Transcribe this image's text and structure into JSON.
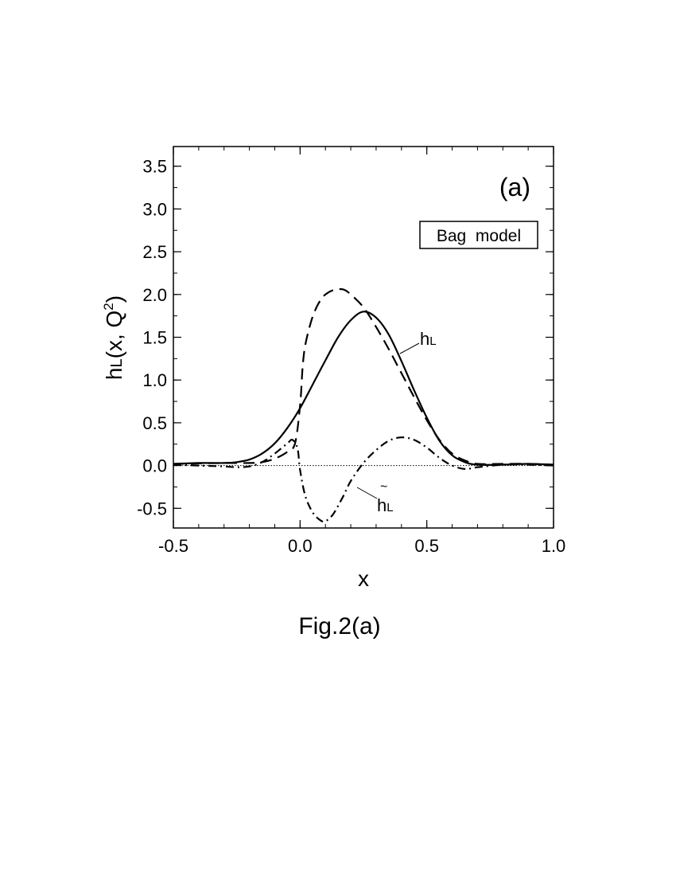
{
  "chart_data": {
    "type": "line",
    "panel_label": "(a)",
    "legend_box": "Bag  model",
    "caption": "Fig.2(a)",
    "xlabel": "x",
    "ylabel": {
      "base": "h",
      "sub": "L",
      "args": "(x, Q",
      "sup": "2",
      "close": ")"
    },
    "xlim": [
      -0.5,
      1.0
    ],
    "ylim": [
      -0.73,
      3.73
    ],
    "x_ticks": [
      "-0.5",
      "0.0",
      "0.5",
      "1.0"
    ],
    "y_ticks": [
      "-0.5",
      "0.0",
      "0.5",
      "1.0",
      "1.5",
      "2.0",
      "2.5",
      "3.0",
      "3.5"
    ],
    "annotations": [
      {
        "text": "h",
        "sub": "L",
        "tilde": false,
        "series": "solid"
      },
      {
        "text": "h",
        "sub": "L",
        "tilde": true,
        "series": "dash-dot"
      }
    ],
    "series": [
      {
        "style": "solid",
        "x": [
          -0.5,
          -0.4,
          -0.3,
          -0.25,
          -0.2,
          -0.15,
          -0.1,
          -0.05,
          0.0,
          0.05,
          0.1,
          0.15,
          0.2,
          0.25,
          0.3,
          0.35,
          0.4,
          0.45,
          0.5,
          0.55,
          0.6,
          0.65,
          0.7,
          0.8,
          0.9,
          1.0
        ],
        "y": [
          0.02,
          0.03,
          0.03,
          0.04,
          0.07,
          0.14,
          0.26,
          0.44,
          0.67,
          0.95,
          1.23,
          1.5,
          1.7,
          1.8,
          1.73,
          1.53,
          1.22,
          0.88,
          0.56,
          0.29,
          0.12,
          0.04,
          0.01,
          0.01,
          0.02,
          0.01
        ]
      },
      {
        "style": "dashed",
        "x": [
          -0.5,
          -0.3,
          -0.2,
          -0.15,
          -0.1,
          -0.05,
          -0.02,
          0.0,
          0.01,
          0.02,
          0.04,
          0.06,
          0.08,
          0.1,
          0.13,
          0.17,
          0.2,
          0.25,
          0.3,
          0.35,
          0.4,
          0.45,
          0.5,
          0.55,
          0.6,
          0.65,
          0.7,
          0.8,
          0.9,
          1.0
        ],
        "y": [
          0.02,
          0.03,
          0.03,
          0.04,
          0.08,
          0.16,
          0.26,
          0.7,
          1.15,
          1.4,
          1.65,
          1.82,
          1.93,
          2.0,
          2.05,
          2.06,
          2.0,
          1.85,
          1.62,
          1.36,
          1.08,
          0.8,
          0.53,
          0.3,
          0.14,
          0.06,
          0.02,
          0.02,
          0.02,
          0.01
        ]
      },
      {
        "style": "dash-dot",
        "x": [
          -0.5,
          -0.4,
          -0.3,
          -0.25,
          -0.2,
          -0.15,
          -0.1,
          -0.05,
          -0.03,
          -0.01,
          0.0,
          0.02,
          0.05,
          0.08,
          0.1,
          0.13,
          0.17,
          0.2,
          0.25,
          0.3,
          0.35,
          0.4,
          0.45,
          0.5,
          0.55,
          0.6,
          0.65,
          0.7,
          0.8,
          0.9,
          1.0
        ],
        "y": [
          0.01,
          0.0,
          -0.01,
          -0.02,
          -0.01,
          0.04,
          0.14,
          0.26,
          0.3,
          0.2,
          -0.05,
          -0.35,
          -0.55,
          -0.64,
          -0.65,
          -0.57,
          -0.36,
          -0.18,
          0.03,
          0.18,
          0.29,
          0.33,
          0.3,
          0.21,
          0.09,
          0.0,
          -0.04,
          -0.02,
          0.01,
          0.01,
          0.0
        ]
      }
    ]
  }
}
